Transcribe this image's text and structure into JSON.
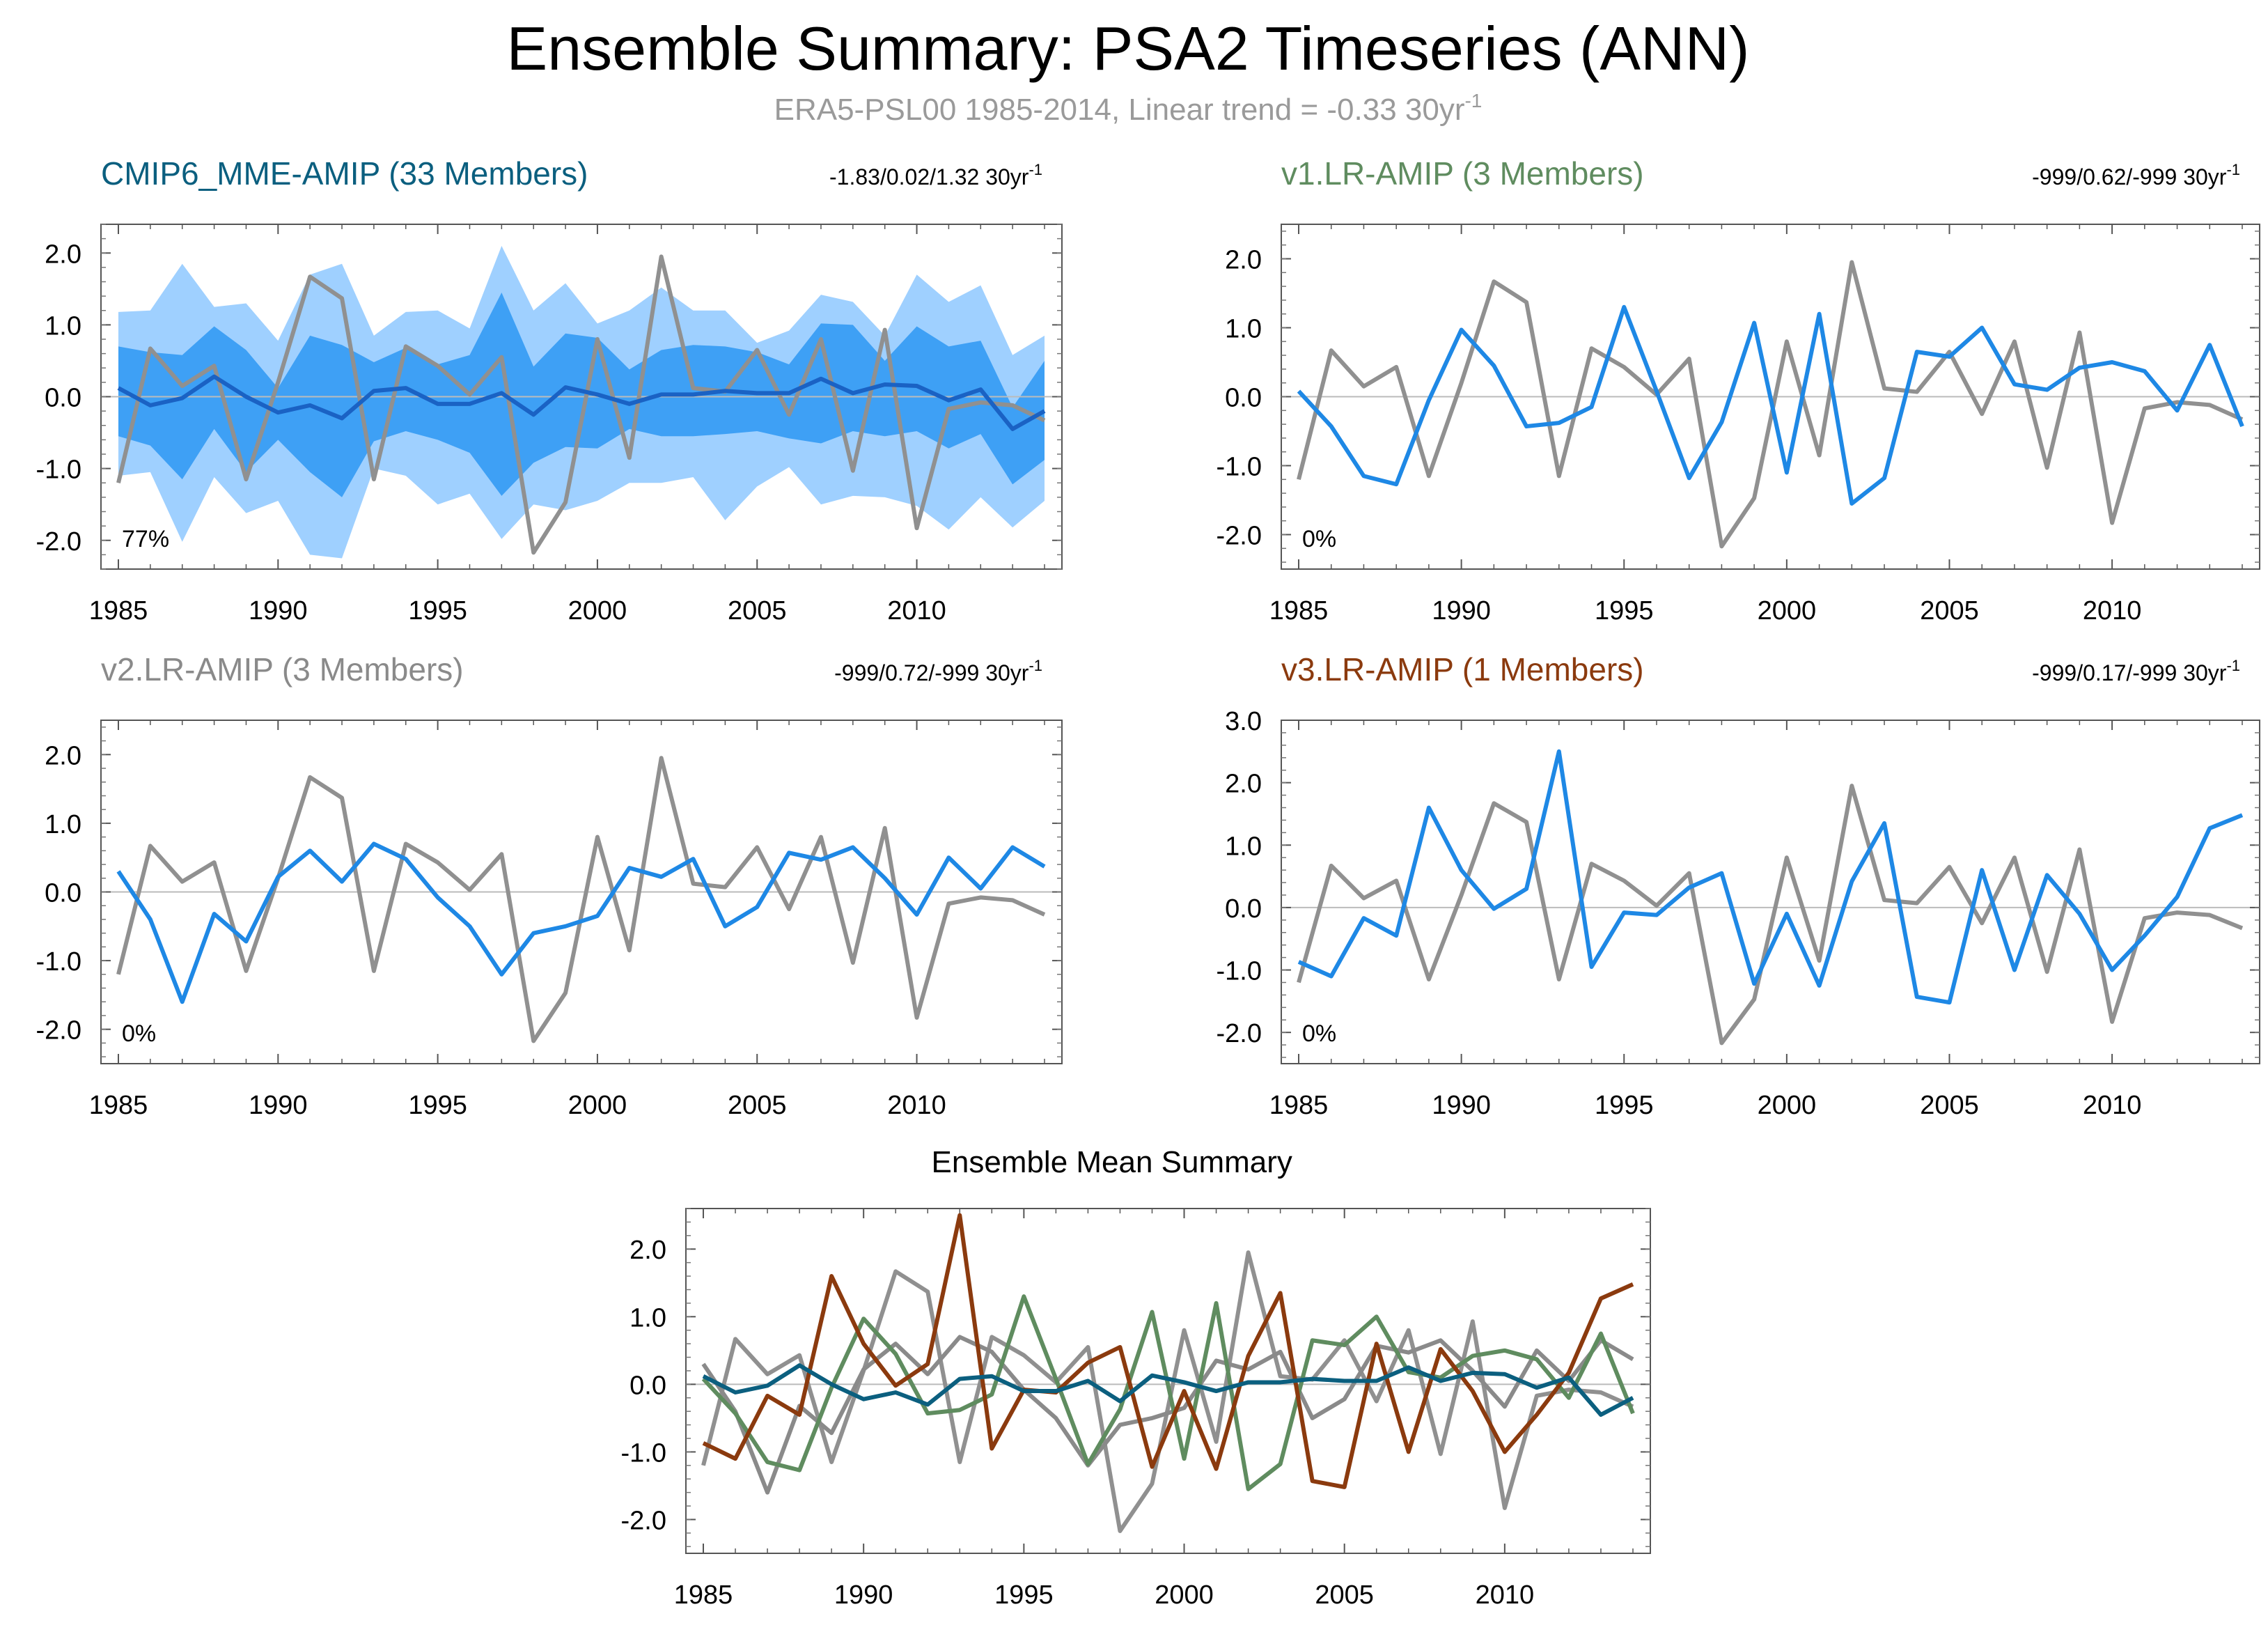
{
  "page": {
    "title": "Ensemble Summary: PSA2 Timeseries (ANN)",
    "subtitle_text": "ERA5-PSL00 1985-2014, Linear trend = -0.33 30yr",
    "subtitle_sup": "-1"
  },
  "colors": {
    "obs": "#909090",
    "blue": "#1e88e5",
    "cmip": "#0b5f7f",
    "v1": "#5f8c5f",
    "v2": "#8a8a8a",
    "v3": "#8b3a0e",
    "band_outer": "#9fd0ff",
    "band_inner": "#3ea0f5",
    "mme_line": "#1a62c4"
  },
  "chart_data": [
    {
      "type": "area",
      "title": "CMIP6_MME-AMIP (33 Members)",
      "trend_text": "-1.83/0.02/1.32 30yr",
      "trend_sup": "-1",
      "percent_label": "77%",
      "x": [
        1985,
        1986,
        1987,
        1988,
        1989,
        1990,
        1991,
        1992,
        1993,
        1994,
        1995,
        1996,
        1997,
        1998,
        1999,
        2000,
        2001,
        2002,
        2003,
        2004,
        2005,
        2006,
        2007,
        2008,
        2009,
        2010,
        2011,
        2012,
        2013,
        2014
      ],
      "xticks": [
        "1985",
        "1990",
        "1995",
        "2000",
        "2005",
        "2010"
      ],
      "yticks": [
        "2.0",
        "1.0",
        "0.0",
        "-1.0",
        "-2.0"
      ],
      "ylim": [
        -2.4,
        2.4
      ],
      "observed": [
        -1.2,
        0.67,
        0.15,
        0.43,
        -1.15,
        0.2,
        1.67,
        1.37,
        -1.15,
        0.7,
        0.43,
        0.03,
        0.55,
        -2.17,
        -1.47,
        0.8,
        -0.85,
        1.95,
        0.12,
        0.07,
        0.65,
        -0.25,
        0.8,
        -1.03,
        0.93,
        -1.83,
        -0.17,
        -0.08,
        -0.12,
        -0.33
      ],
      "ensemble_mean": [
        0.12,
        -0.12,
        -0.02,
        0.28,
        0.0,
        -0.22,
        -0.12,
        -0.3,
        0.08,
        0.12,
        -0.1,
        -0.1,
        0.05,
        -0.25,
        0.13,
        0.03,
        -0.1,
        0.03,
        0.03,
        0.08,
        0.05,
        0.05,
        0.25,
        0.05,
        0.17,
        0.15,
        -0.05,
        0.1,
        -0.45,
        -0.2
      ],
      "band_outer_upper": [
        1.18,
        1.2,
        1.85,
        1.25,
        1.3,
        0.78,
        1.7,
        1.85,
        0.85,
        1.18,
        1.2,
        0.95,
        2.1,
        1.2,
        1.58,
        1.02,
        1.2,
        1.52,
        1.2,
        1.2,
        0.75,
        0.92,
        1.42,
        1.32,
        0.85,
        1.7,
        1.32,
        1.55,
        0.58,
        0.85
      ],
      "band_inner_upper": [
        0.7,
        0.62,
        0.58,
        0.98,
        0.65,
        0.12,
        0.85,
        0.72,
        0.48,
        0.68,
        0.45,
        0.58,
        1.45,
        0.42,
        0.88,
        0.82,
        0.38,
        0.65,
        0.72,
        0.7,
        0.62,
        0.45,
        1.02,
        1.0,
        0.5,
        0.98,
        0.7,
        0.78,
        -0.15,
        0.5
      ],
      "band_inner_lower": [
        -0.55,
        -0.68,
        -1.15,
        -0.45,
        -1.05,
        -0.6,
        -1.05,
        -1.4,
        -0.62,
        -0.48,
        -0.6,
        -0.78,
        -1.38,
        -0.92,
        -0.7,
        -0.72,
        -0.45,
        -0.55,
        -0.55,
        -0.52,
        -0.48,
        -0.58,
        -0.65,
        -0.48,
        -0.55,
        -0.48,
        -0.72,
        -0.52,
        -1.22,
        -0.88
      ],
      "band_outer_lower": [
        -1.1,
        -1.05,
        -2.02,
        -1.12,
        -1.62,
        -1.45,
        -2.2,
        -2.25,
        -1.0,
        -1.1,
        -1.5,
        -1.35,
        -1.98,
        -1.5,
        -1.58,
        -1.45,
        -1.2,
        -1.2,
        -1.12,
        -1.72,
        -1.25,
        -0.98,
        -1.5,
        -1.38,
        -1.4,
        -1.52,
        -1.85,
        -1.4,
        -1.82,
        -1.45
      ]
    },
    {
      "type": "line",
      "title": "v1.LR-AMIP (3 Members)",
      "trend_text": "-999/0.62/-999 30yr",
      "trend_sup": "-1",
      "percent_label": "0%",
      "x": [
        1985,
        1986,
        1987,
        1988,
        1989,
        1990,
        1991,
        1992,
        1993,
        1994,
        1995,
        1996,
        1997,
        1998,
        1999,
        2000,
        2001,
        2002,
        2003,
        2004,
        2005,
        2006,
        2007,
        2008,
        2009,
        2010,
        2011,
        2012,
        2013,
        2014
      ],
      "xticks": [
        "1985",
        "1990",
        "1995",
        "2000",
        "2005",
        "2010"
      ],
      "yticks": [
        "2.0",
        "1.0",
        "0.0",
        "-1.0",
        "-2.0"
      ],
      "ylim": [
        -2.5,
        2.5
      ],
      "observed": [
        -1.2,
        0.67,
        0.15,
        0.43,
        -1.15,
        0.2,
        1.67,
        1.37,
        -1.15,
        0.7,
        0.43,
        0.03,
        0.55,
        -2.17,
        -1.47,
        0.8,
        -0.85,
        1.95,
        0.12,
        0.07,
        0.65,
        -0.25,
        0.8,
        -1.03,
        0.93,
        -1.83,
        -0.17,
        -0.08,
        -0.12,
        -0.33
      ],
      "member_mean": [
        0.08,
        -0.43,
        -1.15,
        -1.27,
        -0.05,
        0.97,
        0.45,
        -0.43,
        -0.38,
        -0.15,
        1.3,
        0.08,
        -1.18,
        -0.37,
        1.07,
        -1.1,
        1.2,
        -1.55,
        -1.18,
        0.65,
        0.58,
        1.0,
        0.18,
        0.1,
        0.42,
        0.5,
        0.37,
        -0.2,
        0.75,
        -0.43
      ]
    },
    {
      "type": "line",
      "title": "v2.LR-AMIP (3 Members)",
      "trend_text": "-999/0.72/-999 30yr",
      "trend_sup": "-1",
      "percent_label": "0%",
      "x": [
        1985,
        1986,
        1987,
        1988,
        1989,
        1990,
        1991,
        1992,
        1993,
        1994,
        1995,
        1996,
        1997,
        1998,
        1999,
        2000,
        2001,
        2002,
        2003,
        2004,
        2005,
        2006,
        2007,
        2008,
        2009,
        2010,
        2011,
        2012,
        2013,
        2014
      ],
      "xticks": [
        "1985",
        "1990",
        "1995",
        "2000",
        "2005",
        "2010"
      ],
      "yticks": [
        "2.0",
        "1.0",
        "0.0",
        "-1.0",
        "-2.0"
      ],
      "ylim": [
        -2.5,
        2.5
      ],
      "observed": [
        -1.2,
        0.67,
        0.15,
        0.43,
        -1.15,
        0.2,
        1.67,
        1.37,
        -1.15,
        0.7,
        0.43,
        0.03,
        0.55,
        -2.17,
        -1.47,
        0.8,
        -0.85,
        1.95,
        0.12,
        0.07,
        0.65,
        -0.25,
        0.8,
        -1.03,
        0.93,
        -1.83,
        -0.17,
        -0.08,
        -0.12,
        -0.33
      ],
      "member_mean": [
        0.3,
        -0.4,
        -1.6,
        -0.32,
        -0.72,
        0.22,
        0.6,
        0.15,
        0.7,
        0.48,
        -0.08,
        -0.5,
        -1.2,
        -0.6,
        -0.5,
        -0.35,
        0.35,
        0.22,
        0.48,
        -0.5,
        -0.22,
        0.57,
        0.47,
        0.65,
        0.2,
        -0.33,
        0.5,
        0.05,
        0.65,
        0.37
      ]
    },
    {
      "type": "line",
      "title": "v3.LR-AMIP (1 Members)",
      "trend_text": "-999/0.17/-999 30yr",
      "trend_sup": "-1",
      "percent_label": "0%",
      "x": [
        1985,
        1986,
        1987,
        1988,
        1989,
        1990,
        1991,
        1992,
        1993,
        1994,
        1995,
        1996,
        1997,
        1998,
        1999,
        2000,
        2001,
        2002,
        2003,
        2004,
        2005,
        2006,
        2007,
        2008,
        2009,
        2010,
        2011,
        2012,
        2013,
        2014
      ],
      "xticks": [
        "1985",
        "1990",
        "1995",
        "2000",
        "2005",
        "2010"
      ],
      "yticks": [
        "3.0",
        "2.0",
        "1.0",
        "0.0",
        "-1.0",
        "-2.0"
      ],
      "ylim": [
        -2.5,
        3.0
      ],
      "observed": [
        -1.2,
        0.67,
        0.15,
        0.43,
        -1.15,
        0.2,
        1.67,
        1.37,
        -1.15,
        0.7,
        0.43,
        0.03,
        0.55,
        -2.17,
        -1.47,
        0.8,
        -0.85,
        1.95,
        0.12,
        0.07,
        0.65,
        -0.25,
        0.8,
        -1.03,
        0.93,
        -1.83,
        -0.17,
        -0.08,
        -0.12,
        -0.33
      ],
      "member_mean": [
        -0.87,
        -1.1,
        -0.17,
        -0.45,
        1.6,
        0.6,
        -0.02,
        0.3,
        2.5,
        -0.95,
        -0.08,
        -0.12,
        0.32,
        0.55,
        -1.22,
        -0.1,
        -1.25,
        0.42,
        1.35,
        -1.43,
        -1.52,
        0.6,
        -1.0,
        0.52,
        -0.1,
        -1.0,
        -0.45,
        0.17,
        1.27,
        1.48
      ]
    },
    {
      "type": "line",
      "title": "Ensemble Mean Summary",
      "x": [
        1985,
        1986,
        1987,
        1988,
        1989,
        1990,
        1991,
        1992,
        1993,
        1994,
        1995,
        1996,
        1997,
        1998,
        1999,
        2000,
        2001,
        2002,
        2003,
        2004,
        2005,
        2006,
        2007,
        2008,
        2009,
        2010,
        2011,
        2012,
        2013,
        2014
      ],
      "xticks": [
        "1985",
        "1990",
        "1995",
        "2000",
        "2005",
        "2010"
      ],
      "yticks": [
        "2.0",
        "1.0",
        "0.0",
        "-1.0",
        "-2.0"
      ],
      "ylim": [
        -2.5,
        2.6
      ],
      "series_order": [
        "observed",
        "v2",
        "v1",
        "v3",
        "cmip"
      ]
    }
  ]
}
